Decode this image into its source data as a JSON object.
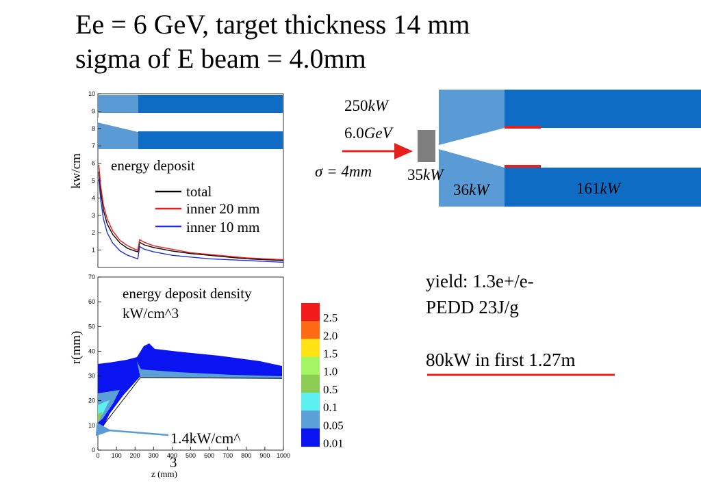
{
  "slide": {
    "title_line1": "Ee = 6 GeV, target thickness 14 mm",
    "title_line2": "sigma of E beam = 4.0mm"
  },
  "diagram": {
    "power": "250",
    "energy": "6.0",
    "sigma_prefix": "σ = 4",
    "power_target": "35",
    "power_taper": "36",
    "power_pipe": "161",
    "unit_kw": "kW",
    "unit_gev": "GeV",
    "unit_mm": "mm",
    "colors": {
      "pipe": "#0f6cc4",
      "taper": "#5b9bd5",
      "target": "#7f7f7f",
      "beam": "#e8201d"
    }
  },
  "notes": {
    "yield": "yield:  1.3e+/e-",
    "pedd": "PEDD 23J/g",
    "power_first": "80kW in first 1.27m",
    "underline_color": "#e8201d"
  },
  "chart_data": [
    {
      "type": "line",
      "title": "energy deposit",
      "xlabel": "",
      "ylabel": "kw/cm",
      "xlim": [
        0,
        1000
      ],
      "ylim": [
        0,
        10
      ],
      "yticks": [
        1,
        2,
        3,
        4,
        5,
        6,
        7,
        8,
        9,
        10
      ],
      "legend": [
        {
          "label": "total",
          "color": "#000000"
        },
        {
          "label": "inner 20 mm",
          "color": "#e8201d"
        },
        {
          "label": "inner 10 mm",
          "color": "#1f2fe0"
        }
      ],
      "series": [
        {
          "name": "total",
          "color": "#000000",
          "x": [
            5,
            15,
            30,
            50,
            80,
            120,
            160,
            200,
            215,
            225,
            250,
            300,
            400,
            500,
            600,
            700,
            800,
            900,
            1000
          ],
          "y": [
            5.5,
            4.4,
            3.3,
            2.5,
            1.9,
            1.4,
            1.1,
            0.95,
            0.9,
            1.45,
            1.3,
            1.15,
            0.95,
            0.8,
            0.7,
            0.6,
            0.5,
            0.45,
            0.4
          ]
        },
        {
          "name": "inner 20 mm",
          "color": "#e8201d",
          "x": [
            5,
            15,
            30,
            50,
            80,
            120,
            160,
            200,
            215,
            225,
            250,
            300,
            400,
            500,
            600,
            700,
            800,
            900,
            1000
          ],
          "y": [
            5.9,
            4.7,
            3.6,
            2.8,
            2.1,
            1.55,
            1.25,
            1.05,
            1.0,
            1.6,
            1.45,
            1.25,
            1.05,
            0.85,
            0.75,
            0.65,
            0.55,
            0.5,
            0.45
          ]
        },
        {
          "name": "inner 10 mm",
          "color": "#1f2fe0",
          "x": [
            5,
            15,
            30,
            50,
            80,
            120,
            160,
            200,
            215,
            225,
            250,
            300,
            400,
            500,
            600,
            700,
            800,
            900,
            1000
          ],
          "y": [
            5.1,
            3.9,
            2.8,
            2.0,
            1.4,
            0.95,
            0.7,
            0.55,
            0.5,
            1.2,
            1.05,
            0.9,
            0.7,
            0.6,
            0.5,
            0.45,
            0.4,
            0.35,
            0.3
          ]
        }
      ]
    },
    {
      "type": "heatmap",
      "title": "energy deposit density",
      "subtitle": "kW/cm^3",
      "xlabel": "z (mm)",
      "ylabel": "r(mm)",
      "xlim": [
        0,
        1000
      ],
      "ylim": [
        0,
        70
      ],
      "xticks": [
        0,
        100,
        200,
        300,
        400,
        500,
        600,
        700,
        800,
        900,
        1000
      ],
      "yticks": [
        0,
        10,
        20,
        30,
        40,
        50,
        60,
        70
      ],
      "colorbar": [
        {
          "label": "2.5",
          "color": "#f21a1a"
        },
        {
          "label": "2.0",
          "color": "#ff6a14"
        },
        {
          "label": "1.5",
          "color": "#ffe314"
        },
        {
          "label": "1.0",
          "color": "#a3f564"
        },
        {
          "label": "0.5",
          "color": "#8ccc52"
        },
        {
          "label": "0.1",
          "color": "#5cf0f0"
        },
        {
          "label": "0.05",
          "color": "#5ca0d8"
        },
        {
          "label": "0.01",
          "color": "#0a14f0"
        }
      ],
      "annotation": "1.4kW/cm^",
      "annotation_tail": "3",
      "annotation_point": {
        "z": 15,
        "r": 7
      }
    }
  ]
}
